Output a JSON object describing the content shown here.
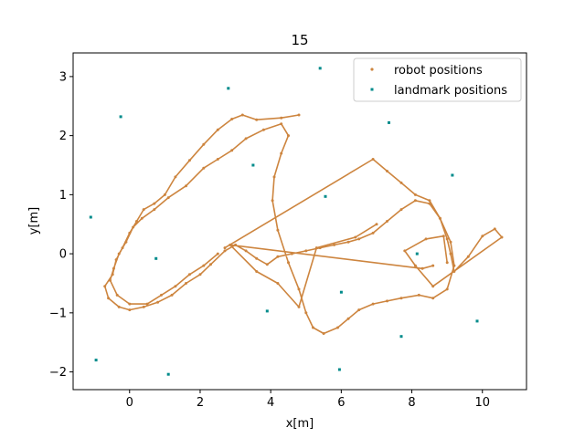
{
  "chart_data": {
    "type": "scatter",
    "title": "15",
    "xlabel": "x[m]",
    "ylabel": "y[m]",
    "xlim": [
      -1.6,
      11.25
    ],
    "ylim": [
      -2.3,
      3.4
    ],
    "xticks": [
      0,
      2,
      4,
      6,
      8,
      10
    ],
    "yticks": [
      -2,
      -1,
      0,
      1,
      2,
      3
    ],
    "xtick_labels": [
      "0",
      "2",
      "4",
      "6",
      "8",
      "10"
    ],
    "ytick_labels": [
      "−2",
      "−1",
      "0",
      "1",
      "2",
      "3"
    ],
    "grid": false,
    "legend_position": "top-right",
    "colors": {
      "robot": "#cd853f",
      "landmark": "#008b8b"
    },
    "series": [
      {
        "name": "robot positions",
        "marker": "dot",
        "points": [
          [
            4.8,
            2.35
          ],
          [
            4.3,
            2.3
          ],
          [
            3.6,
            2.27
          ],
          [
            3.2,
            2.35
          ],
          [
            2.9,
            2.28
          ],
          [
            2.5,
            2.1
          ],
          [
            2.1,
            1.85
          ],
          [
            1.7,
            1.58
          ],
          [
            1.3,
            1.3
          ],
          [
            1.0,
            1.0
          ],
          [
            0.7,
            0.85
          ],
          [
            0.4,
            0.75
          ],
          [
            0.2,
            0.55
          ],
          [
            0.0,
            0.35
          ],
          [
            -0.2,
            0.1
          ],
          [
            -0.38,
            -0.1
          ],
          [
            -0.48,
            -0.35
          ],
          [
            -0.7,
            -0.55
          ],
          [
            -0.6,
            -0.75
          ],
          [
            -0.3,
            -0.9
          ],
          [
            0.0,
            -0.95
          ],
          [
            0.4,
            -0.9
          ],
          [
            0.8,
            -0.82
          ],
          [
            1.2,
            -0.7
          ],
          [
            1.6,
            -0.5
          ],
          [
            2.0,
            -0.35
          ],
          [
            2.3,
            -0.18
          ],
          [
            2.7,
            0.05
          ],
          [
            3.0,
            0.15
          ],
          [
            3.3,
            0.05
          ],
          [
            3.6,
            -0.08
          ],
          [
            3.9,
            -0.18
          ],
          [
            4.2,
            -0.05
          ],
          [
            4.6,
            0.0
          ],
          [
            5.0,
            0.05
          ],
          [
            5.4,
            0.1
          ],
          [
            5.8,
            0.15
          ],
          [
            6.2,
            0.2
          ],
          [
            6.5,
            0.25
          ],
          [
            6.9,
            0.35
          ],
          [
            7.3,
            0.55
          ],
          [
            7.7,
            0.75
          ],
          [
            8.1,
            0.9
          ],
          [
            8.5,
            0.85
          ],
          [
            8.8,
            0.6
          ],
          [
            9.1,
            0.2
          ],
          [
            9.2,
            -0.2
          ],
          [
            9.0,
            -0.6
          ],
          [
            8.6,
            -0.75
          ],
          [
            8.2,
            -0.7
          ],
          [
            7.7,
            -0.75
          ],
          [
            7.3,
            -0.8
          ],
          [
            6.9,
            -0.85
          ],
          [
            6.5,
            -0.95
          ],
          [
            6.2,
            -1.1
          ],
          [
            5.9,
            -1.25
          ],
          [
            5.5,
            -1.35
          ],
          [
            5.2,
            -1.25
          ],
          [
            5.0,
            -1.0
          ],
          [
            4.8,
            -0.6
          ],
          [
            4.5,
            -0.15
          ],
          [
            4.2,
            0.4
          ],
          [
            4.05,
            0.9
          ],
          [
            4.1,
            1.3
          ],
          [
            4.3,
            1.7
          ],
          [
            4.5,
            2.0
          ],
          [
            4.3,
            2.2
          ],
          [
            3.8,
            2.1
          ],
          [
            3.3,
            1.95
          ],
          [
            2.9,
            1.75
          ],
          [
            2.5,
            1.6
          ],
          [
            2.1,
            1.45
          ],
          [
            1.6,
            1.15
          ],
          [
            1.1,
            0.95
          ],
          [
            0.7,
            0.75
          ],
          [
            0.35,
            0.6
          ],
          [
            0.1,
            0.45
          ],
          [
            -0.1,
            0.2
          ],
          [
            -0.3,
            0.0
          ],
          [
            -0.45,
            -0.25
          ],
          [
            -0.55,
            -0.45
          ],
          [
            -0.35,
            -0.7
          ],
          [
            0.0,
            -0.85
          ],
          [
            0.5,
            -0.85
          ],
          [
            0.9,
            -0.7
          ],
          [
            1.3,
            -0.55
          ],
          [
            1.7,
            -0.35
          ],
          [
            2.1,
            -0.2
          ],
          [
            2.5,
            0.0
          ],
          [
            2.7,
            0.1
          ],
          [
            6.9,
            1.6
          ],
          [
            7.3,
            1.4
          ],
          [
            7.7,
            1.2
          ],
          [
            8.1,
            1.0
          ],
          [
            8.5,
            0.9
          ],
          [
            8.8,
            0.6
          ],
          [
            9.0,
            0.25
          ],
          [
            9.1,
            0.0
          ],
          [
            9.2,
            -0.3
          ],
          [
            9.6,
            -0.05
          ],
          [
            10.0,
            0.3
          ],
          [
            10.35,
            0.42
          ],
          [
            10.55,
            0.28
          ],
          [
            8.6,
            -0.55
          ],
          [
            8.1,
            -0.2
          ],
          [
            7.8,
            0.05
          ],
          [
            8.4,
            0.25
          ],
          [
            8.9,
            0.3
          ],
          [
            9.0,
            -0.15
          ],
          [
            8.6,
            -0.2
          ],
          [
            8.3,
            -0.25
          ],
          [
            2.85,
            0.15
          ],
          [
            3.6,
            -0.3
          ],
          [
            4.2,
            -0.5
          ],
          [
            4.8,
            -0.9
          ],
          [
            5.3,
            0.1
          ],
          [
            6.4,
            0.28
          ],
          [
            7.0,
            0.5
          ]
        ]
      },
      {
        "name": "landmark positions",
        "marker": "square",
        "points": [
          [
            -0.25,
            2.32
          ],
          [
            2.8,
            2.8
          ],
          [
            5.4,
            3.14
          ],
          [
            7.35,
            2.22
          ],
          [
            9.15,
            1.33
          ],
          [
            3.5,
            1.5
          ],
          [
            5.55,
            0.97
          ],
          [
            -1.1,
            0.62
          ],
          [
            0.75,
            -0.08
          ],
          [
            8.15,
            0.0
          ],
          [
            6.0,
            -0.65
          ],
          [
            3.9,
            -0.97
          ],
          [
            9.85,
            -1.14
          ],
          [
            7.7,
            -1.4
          ],
          [
            -0.95,
            -1.8
          ],
          [
            1.1,
            -2.04
          ],
          [
            5.95,
            -1.96
          ]
        ]
      }
    ]
  }
}
